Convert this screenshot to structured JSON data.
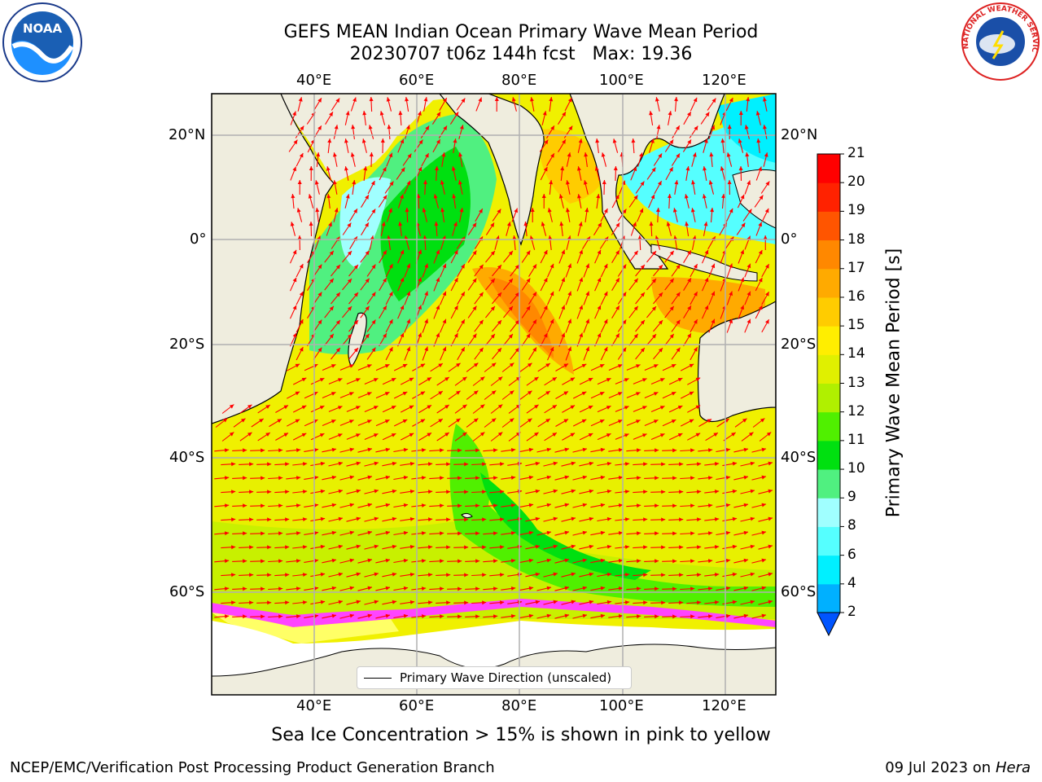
{
  "title_line1": "GEFS MEAN Indian Ocean Primary Wave Mean Period",
  "title_line2": "20230707 t06z 144h fcst   Max: 19.36",
  "logos": {
    "left": "noaa-logo",
    "right": "nws-logo",
    "left_text": "NOAA",
    "right_text": "NATIONAL WEATHER SERVICE"
  },
  "map": {
    "lon_ticks": [
      "40°E",
      "60°E",
      "80°E",
      "100°E",
      "120°E"
    ],
    "lat_ticks": [
      "20°N",
      "0°",
      "20°S",
      "40°S",
      "60°S"
    ],
    "extent_lon": [
      20,
      130
    ],
    "extent_lat": [
      -77,
      27
    ],
    "land_color": "#efedde",
    "ice_colors": [
      "#ff44ff",
      "#ffff66"
    ]
  },
  "legend": {
    "label": "Primary Wave Direction (unscaled)",
    "arrow_color": "#ff0000"
  },
  "colorbar": {
    "label": "Primary Wave Mean Period [s]",
    "ticks": [
      "2",
      "4",
      "6",
      "8",
      "9",
      "10",
      "11",
      "12",
      "13",
      "14",
      "15",
      "16",
      "17",
      "18",
      "19",
      "20",
      "21"
    ],
    "colors": [
      "#0055ff",
      "#00b0ff",
      "#00f0ff",
      "#55ffff",
      "#a0ffff",
      "#50f080",
      "#00e010",
      "#50f000",
      "#b0f000",
      "#e0f000",
      "#ffee00",
      "#ffcc00",
      "#ffaa00",
      "#ff8800",
      "#ff5500",
      "#ff2200",
      "#ff0000"
    ]
  },
  "ice_note": "Sea Ice Concentration > 15% is shown in pink to yellow",
  "footer_left": "NCEP/EMC/Verification Post Processing Product Generation Branch",
  "footer_right_date": "09 Jul 2023 on ",
  "footer_right_host": "Hera"
}
